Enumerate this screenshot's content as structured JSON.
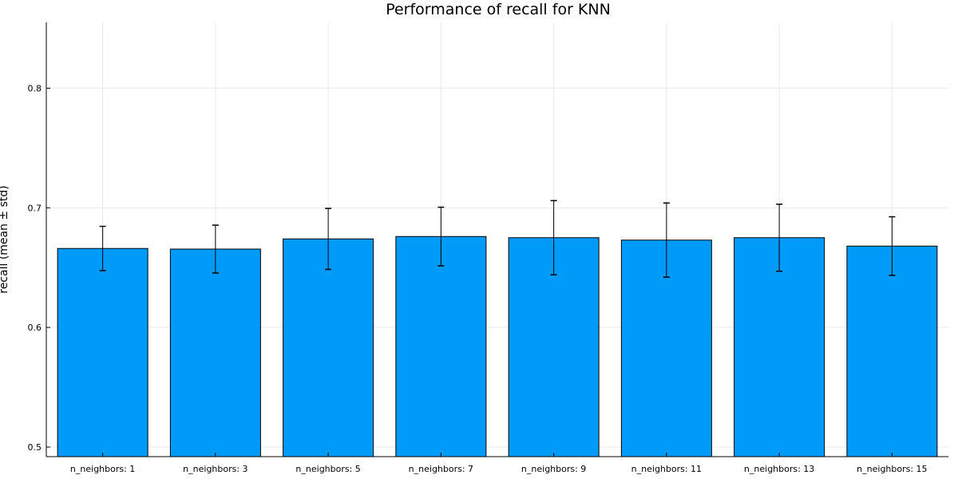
{
  "chart_data": {
    "type": "bar",
    "title": "Performance of recall for KNN",
    "ylabel": "recall (mean ± std)",
    "xlabel": "",
    "categories": [
      "n_neighbors: 1",
      "n_neighbors: 3",
      "n_neighbors: 5",
      "n_neighbors: 7",
      "n_neighbors: 9",
      "n_neighbors: 11",
      "n_neighbors: 13",
      "n_neighbors: 15"
    ],
    "values": [
      0.666,
      0.6655,
      0.674,
      0.676,
      0.675,
      0.673,
      0.675,
      0.668
    ],
    "errors": [
      0.0185,
      0.02,
      0.0255,
      0.0245,
      0.031,
      0.031,
      0.028,
      0.0245
    ],
    "ylim": [
      0.492,
      0.855
    ],
    "yticks": [
      0.5,
      0.6,
      0.7,
      0.8
    ],
    "yticklabels": [
      "0.5",
      "0.6",
      "0.7",
      "0.8"
    ],
    "grid": true,
    "bar_color": "#009af9",
    "legend": "none"
  }
}
